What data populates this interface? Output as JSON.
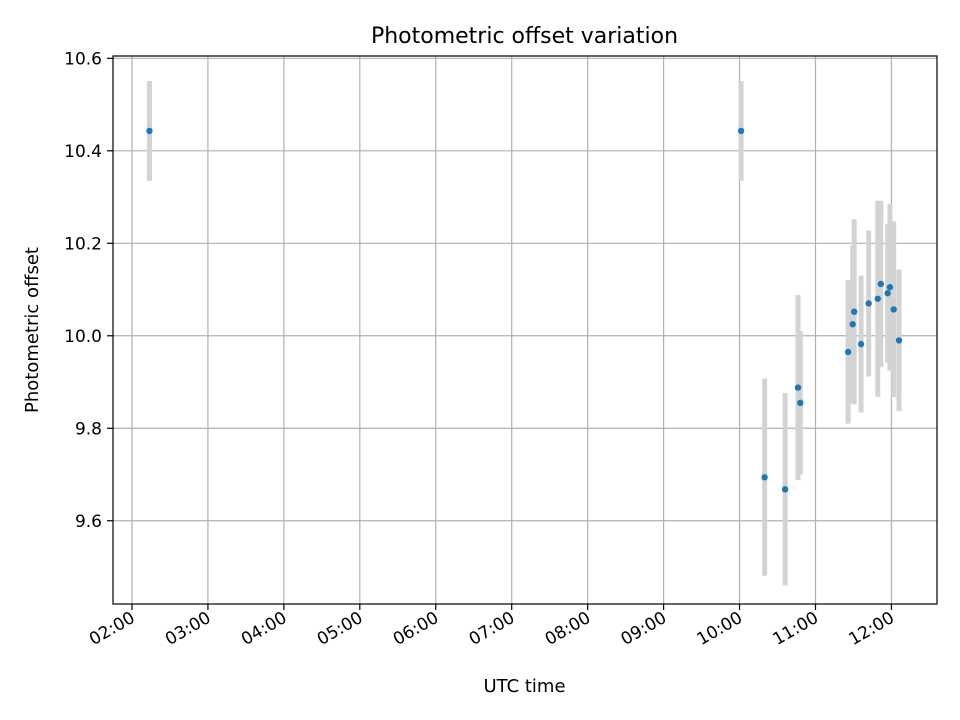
{
  "chart_data": {
    "type": "scatter",
    "title": "Photometric offset variation",
    "xlabel": "UTC time",
    "ylabel": "Photometric offset",
    "x_axis": {
      "unit": "hours UTC",
      "range": [
        1.75,
        12.6
      ],
      "ticks": [
        2,
        3,
        4,
        5,
        6,
        7,
        8,
        9,
        10,
        11,
        12
      ],
      "tick_labels": [
        "02:00",
        "03:00",
        "04:00",
        "05:00",
        "06:00",
        "07:00",
        "08:00",
        "09:00",
        "10:00",
        "11:00",
        "12:00"
      ],
      "tick_label_rotation": 30
    },
    "y_axis": {
      "range": [
        9.42,
        10.605
      ],
      "ticks": [
        9.6,
        9.8,
        10.0,
        10.2,
        10.4,
        10.6
      ],
      "tick_labels": [
        "9.6",
        "9.8",
        "10.0",
        "10.2",
        "10.4",
        "10.6"
      ]
    },
    "grid": true,
    "colors": {
      "marker": "#1f77b4",
      "errorbar": "#d3d3d3"
    },
    "points": [
      {
        "x": 2.23,
        "y": 10.443,
        "yerr": 0.108
      },
      {
        "x": 10.02,
        "y": 10.443,
        "yerr": 0.108
      },
      {
        "x": 10.33,
        "y": 9.694,
        "yerr": 0.213
      },
      {
        "x": 10.6,
        "y": 9.668,
        "yerr": 0.208
      },
      {
        "x": 10.77,
        "y": 9.888,
        "yerr": 0.2
      },
      {
        "x": 10.8,
        "y": 9.855,
        "yerr": 0.155
      },
      {
        "x": 11.43,
        "y": 9.965,
        "yerr": 0.155
      },
      {
        "x": 11.49,
        "y": 10.025,
        "yerr": 0.17
      },
      {
        "x": 11.51,
        "y": 10.052,
        "yerr": 0.2
      },
      {
        "x": 11.6,
        "y": 9.982,
        "yerr": 0.148
      },
      {
        "x": 11.7,
        "y": 10.07,
        "yerr": 0.158
      },
      {
        "x": 11.82,
        "y": 10.08,
        "yerr": 0.212
      },
      {
        "x": 11.86,
        "y": 10.112,
        "yerr": 0.18
      },
      {
        "x": 11.95,
        "y": 10.092,
        "yerr": 0.15
      },
      {
        "x": 11.98,
        "y": 10.105,
        "yerr": 0.18
      },
      {
        "x": 12.03,
        "y": 10.057,
        "yerr": 0.19
      },
      {
        "x": 12.1,
        "y": 9.99,
        "yerr": 0.153
      }
    ]
  }
}
